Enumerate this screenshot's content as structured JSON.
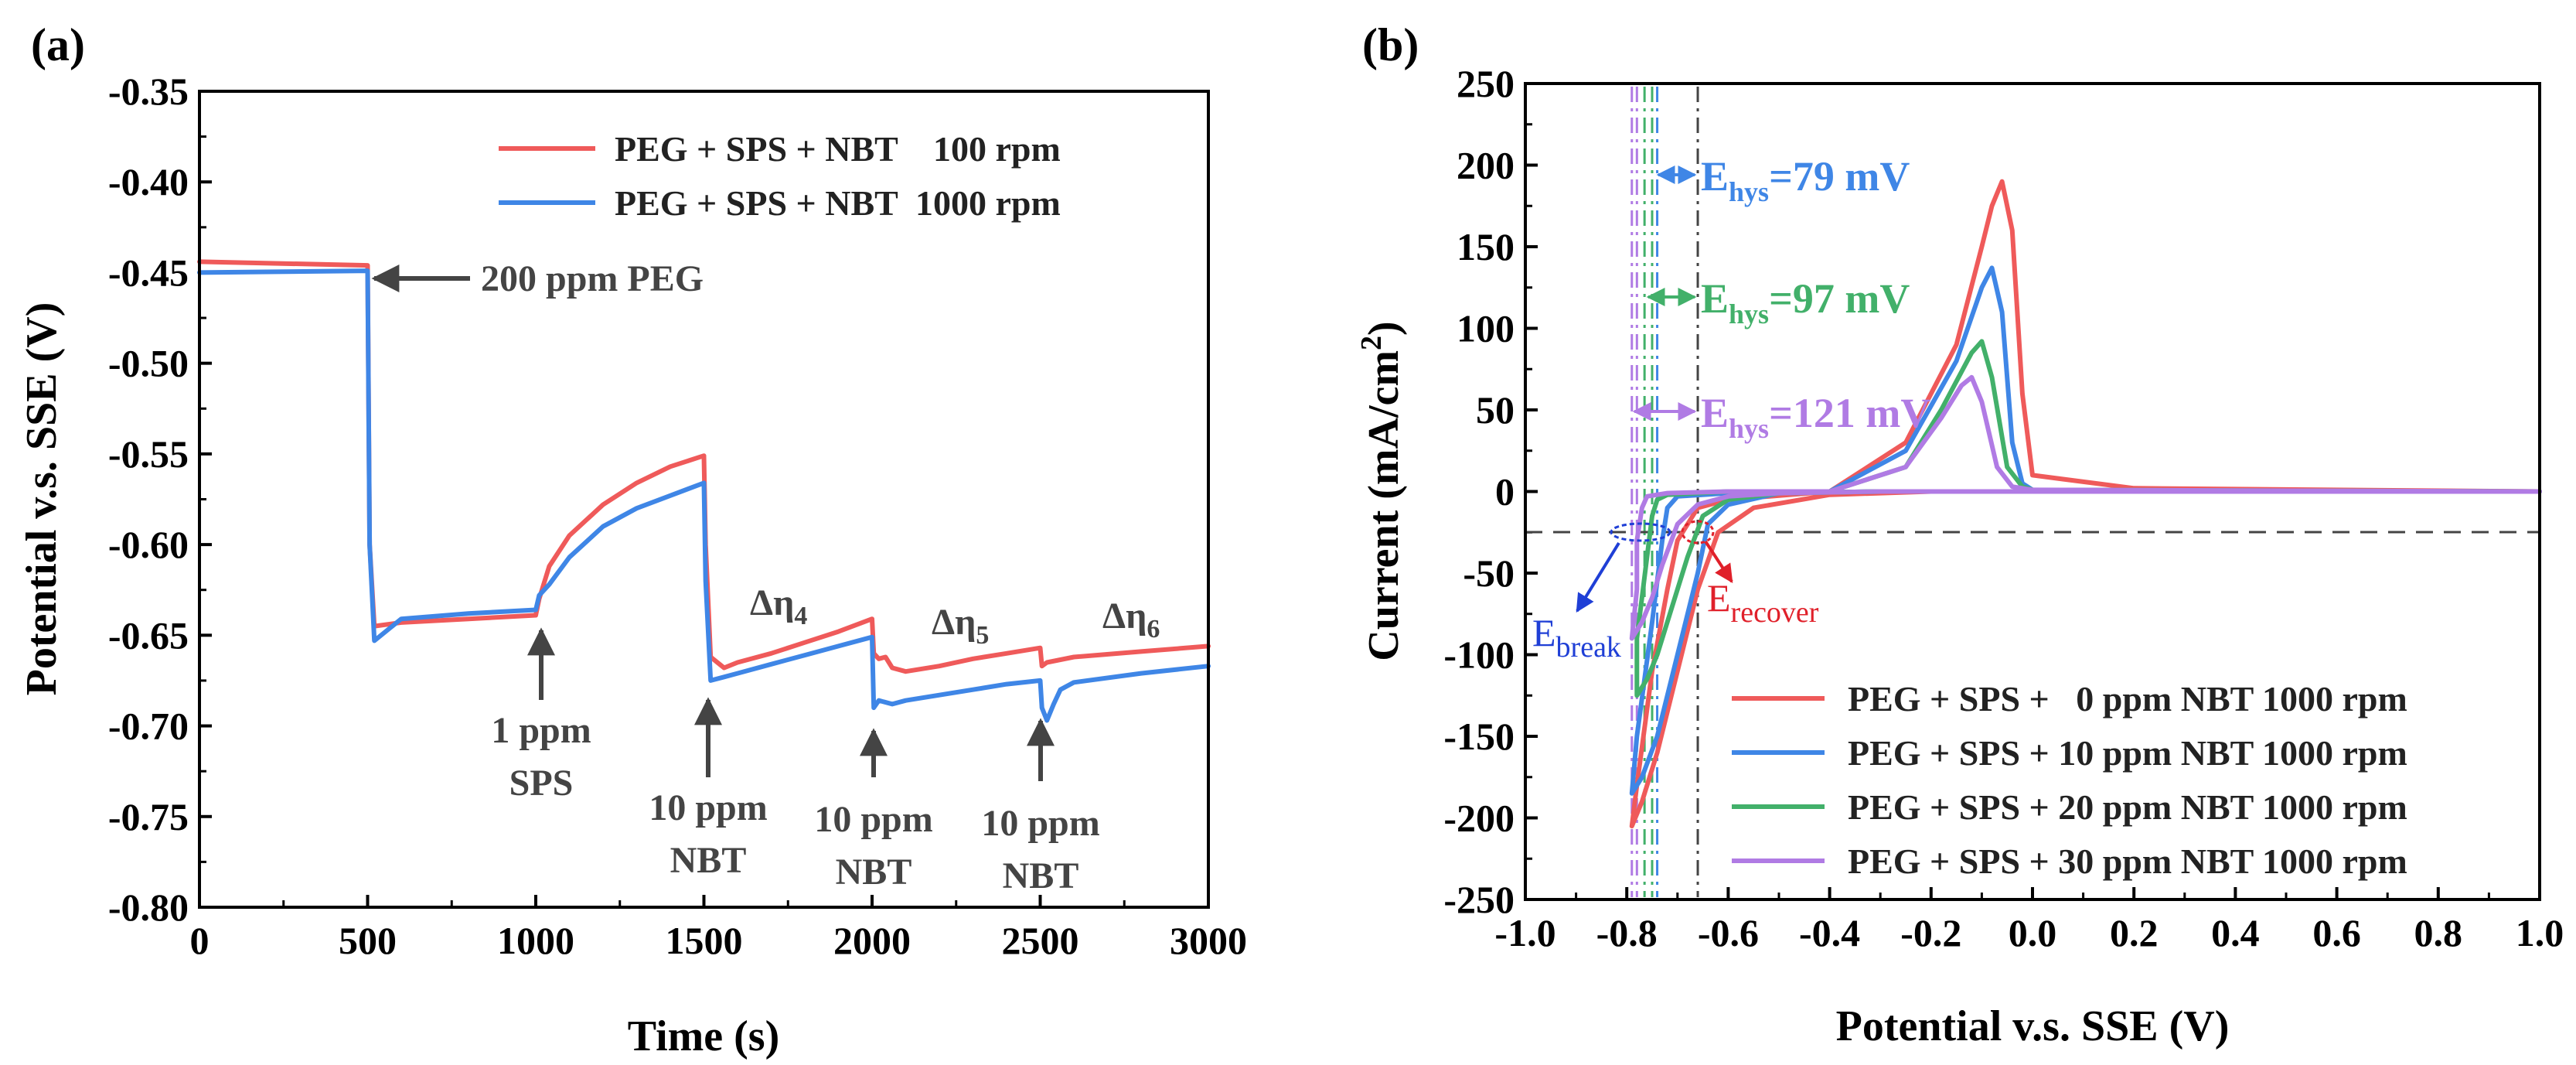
{
  "figure": {
    "colors": {
      "red": "#ef5a5a",
      "blue": "#3f86e6",
      "green": "#42b06a",
      "purple": "#b07be4",
      "gray": "#444444",
      "arrow_blue": "#1f3fd6",
      "arrow_red": "#e0202a"
    }
  },
  "chart_data": [
    {
      "panel_label": "(a)",
      "type": "line",
      "xlabel": "Time (s)",
      "ylabel": "Potential v.s. SSE (V)",
      "xlim": [
        0,
        3000
      ],
      "ylim": [
        -0.8,
        -0.35
      ],
      "xticks": [
        "0",
        "500",
        "1000",
        "1500",
        "2000",
        "2500",
        "3000"
      ],
      "yticks": [
        "-0.35",
        "-0.40",
        "-0.45",
        "-0.50",
        "-0.55",
        "-0.60",
        "-0.65",
        "-0.70",
        "-0.75",
        "-0.80"
      ],
      "legend_position": "top-right",
      "series": [
        {
          "name": "PEG + SPS + NBT    100 rpm",
          "color": "#ef5a5a",
          "x": [
            0,
            500,
            506,
            520,
            600,
            800,
            1000,
            1010,
            1040,
            1100,
            1200,
            1300,
            1400,
            1500,
            1505,
            1520,
            1560,
            1600,
            1700,
            1800,
            1900,
            2000,
            2005,
            2020,
            2040,
            2060,
            2100,
            2200,
            2300,
            2400,
            2500,
            2505,
            2520,
            2600,
            2800,
            3000
          ],
          "y": [
            -0.444,
            -0.446,
            -0.6,
            -0.645,
            -0.643,
            -0.641,
            -0.639,
            -0.63,
            -0.612,
            -0.595,
            -0.578,
            -0.566,
            -0.557,
            -0.551,
            -0.6,
            -0.662,
            -0.668,
            -0.665,
            -0.66,
            -0.654,
            -0.648,
            -0.641,
            -0.66,
            -0.663,
            -0.662,
            -0.668,
            -0.67,
            -0.667,
            -0.663,
            -0.66,
            -0.657,
            -0.667,
            -0.665,
            -0.662,
            -0.659,
            -0.656
          ]
        },
        {
          "name": "PEG + SPS + NBT  1000 rpm",
          "color": "#3f86e6",
          "x": [
            0,
            500,
            506,
            520,
            600,
            800,
            1000,
            1010,
            1040,
            1100,
            1200,
            1300,
            1400,
            1500,
            1505,
            1520,
            1560,
            1600,
            1700,
            1800,
            1900,
            2000,
            2005,
            2020,
            2060,
            2100,
            2200,
            2300,
            2400,
            2500,
            2505,
            2520,
            2540,
            2560,
            2600,
            2800,
            3000
          ],
          "y": [
            -0.45,
            -0.449,
            -0.6,
            -0.653,
            -0.641,
            -0.638,
            -0.636,
            -0.628,
            -0.622,
            -0.607,
            -0.59,
            -0.58,
            -0.573,
            -0.566,
            -0.62,
            -0.675,
            -0.673,
            -0.671,
            -0.666,
            -0.661,
            -0.656,
            -0.651,
            -0.69,
            -0.686,
            -0.688,
            -0.686,
            -0.683,
            -0.68,
            -0.677,
            -0.675,
            -0.69,
            -0.697,
            -0.688,
            -0.68,
            -0.676,
            -0.671,
            -0.667
          ]
        }
      ],
      "annotations": {
        "peg": "200 ppm PEG",
        "sps": [
          "1 ppm",
          "SPS"
        ],
        "nbt1": [
          "10 ppm",
          "NBT"
        ],
        "nbt2": [
          "10 ppm",
          "NBT"
        ],
        "nbt3": [
          "10 ppm",
          "NBT"
        ],
        "eta4": {
          "base": "Δη",
          "sub": "4"
        },
        "eta5": {
          "base": "Δη",
          "sub": "5"
        },
        "eta6": {
          "base": "Δη",
          "sub": "6"
        }
      }
    },
    {
      "panel_label": "(b)",
      "type": "line",
      "xlabel": "Potential v.s. SSE (V)",
      "ylabel": {
        "base": "Current (mA/cm",
        "sup": "2",
        "close": ")"
      },
      "xlim": [
        -1.0,
        1.0
      ],
      "ylim": [
        -250,
        250
      ],
      "xticks": [
        "-1.0",
        "-0.8",
        "-0.6",
        "-0.4",
        "-0.2",
        "0.0",
        "0.2",
        "0.4",
        "0.6",
        "0.8",
        "1.0"
      ],
      "yticks": [
        "250",
        "200",
        "150",
        "100",
        "50",
        "0",
        "-50",
        "-100",
        "-150",
        "-200",
        "-250"
      ],
      "reference_current": -25,
      "legend_position": "bottom-right",
      "series": [
        {
          "name": "PEG + SPS +   0 ppm NBT 1000 rpm",
          "color": "#ef5a5a",
          "x": [
            1.0,
            0.5,
            0.0,
            -0.2,
            -0.4,
            -0.55,
            -0.62,
            -0.66,
            -0.7,
            -0.74,
            -0.77,
            -0.79,
            -0.78,
            -0.75,
            -0.72,
            -0.7,
            -0.66,
            -0.6,
            -0.4,
            -0.25,
            -0.15,
            -0.1,
            -0.08,
            -0.06,
            -0.04,
            -0.02,
            0.0,
            0.2,
            1.0
          ],
          "y": [
            0,
            0,
            0,
            0,
            -2,
            -10,
            -25,
            -60,
            -110,
            -160,
            -190,
            -205,
            -180,
            -110,
            -60,
            -30,
            -10,
            -5,
            0,
            30,
            90,
            150,
            175,
            190,
            160,
            60,
            10,
            2,
            0
          ]
        },
        {
          "name": "PEG + SPS + 10 ppm NBT 1000 rpm",
          "color": "#3f86e6",
          "x": [
            1.0,
            0.5,
            0.0,
            -0.3,
            -0.5,
            -0.6,
            -0.64,
            -0.66,
            -0.7,
            -0.74,
            -0.77,
            -0.79,
            -0.78,
            -0.75,
            -0.73,
            -0.72,
            -0.7,
            -0.6,
            -0.4,
            -0.25,
            -0.15,
            -0.1,
            -0.08,
            -0.06,
            -0.04,
            -0.02,
            0.0,
            0.2,
            1.0
          ],
          "y": [
            0,
            0,
            0,
            0,
            -1,
            -8,
            -20,
            -50,
            -100,
            -150,
            -175,
            -185,
            -150,
            -80,
            -30,
            -10,
            -3,
            -1,
            0,
            25,
            80,
            125,
            137,
            110,
            30,
            5,
            1,
            0,
            0
          ]
        },
        {
          "name": "PEG + SPS + 20 ppm NBT 1000 rpm",
          "color": "#42b06a",
          "x": [
            1.0,
            0.5,
            0.0,
            -0.3,
            -0.5,
            -0.6,
            -0.65,
            -0.68,
            -0.71,
            -0.74,
            -0.76,
            -0.78,
            -0.78,
            -0.76,
            -0.75,
            -0.74,
            -0.72,
            -0.6,
            -0.4,
            -0.25,
            -0.18,
            -0.12,
            -0.1,
            -0.08,
            -0.05,
            -0.02,
            0.0,
            1.0
          ],
          "y": [
            0,
            0,
            0,
            0,
            -1,
            -5,
            -15,
            -40,
            -70,
            -100,
            -115,
            -125,
            -90,
            -40,
            -15,
            -5,
            -2,
            0,
            0,
            15,
            50,
            85,
            92,
            70,
            15,
            3,
            1,
            0
          ]
        },
        {
          "name": "PEG + SPS + 30 ppm NBT 1000 rpm",
          "color": "#b07be4",
          "x": [
            1.0,
            0.5,
            0.0,
            -0.3,
            -0.5,
            -0.6,
            -0.66,
            -0.7,
            -0.73,
            -0.75,
            -0.77,
            -0.79,
            -0.78,
            -0.78,
            -0.77,
            -0.76,
            -0.72,
            -0.6,
            -0.4,
            -0.25,
            -0.18,
            -0.14,
            -0.12,
            -0.1,
            -0.07,
            -0.04,
            0.0,
            1.0
          ],
          "y": [
            0,
            0,
            0,
            0,
            -1,
            -3,
            -8,
            -20,
            -45,
            -65,
            -80,
            -90,
            -60,
            -30,
            -10,
            -3,
            -1,
            0,
            0,
            15,
            45,
            65,
            70,
            55,
            15,
            3,
            1,
            0
          ]
        }
      ],
      "vlines": [
        {
          "x": -0.66,
          "color": "#444444"
        },
        {
          "x": -0.74,
          "color": "#3f86e6"
        },
        {
          "x": -0.75,
          "color": "#42b06a"
        },
        {
          "x": -0.765,
          "color": "#42b06a"
        },
        {
          "x": -0.78,
          "color": "#b07be4"
        },
        {
          "x": -0.79,
          "color": "#b07be4"
        }
      ],
      "annotations": {
        "ehys_blue": {
          "base": "E",
          "sub": "hys",
          "tail": "=79 mV",
          "color": "#3f86e6"
        },
        "ehys_green": {
          "base": "E",
          "sub": "hys",
          "tail": "=97 mV",
          "color": "#42b06a"
        },
        "ehys_purple": {
          "base": "E",
          "sub": "hys",
          "tail": "=121 mV",
          "color": "#b07be4"
        },
        "ebreak": {
          "base": "E",
          "sub": "break",
          "color": "#1f3fd6"
        },
        "erecover": {
          "base": "E",
          "sub": "recover",
          "color": "#e0202a"
        }
      }
    }
  ]
}
